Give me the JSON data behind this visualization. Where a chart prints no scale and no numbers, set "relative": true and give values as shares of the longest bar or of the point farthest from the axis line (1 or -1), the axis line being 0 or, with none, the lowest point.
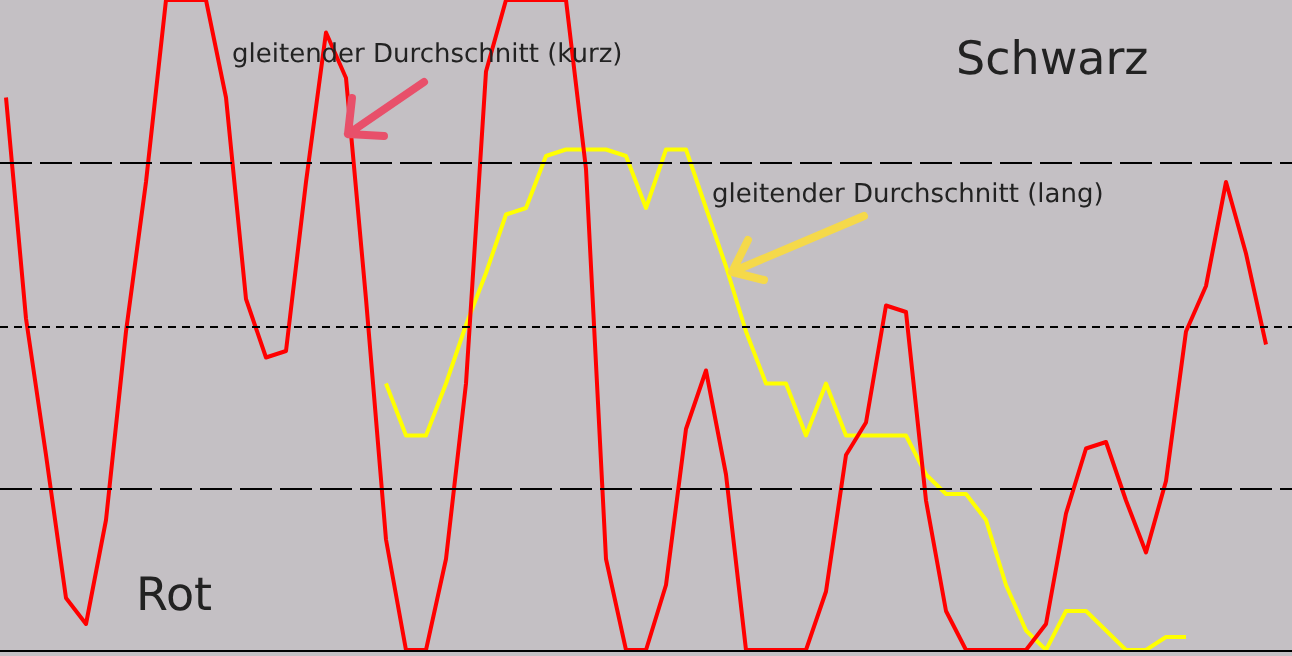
{
  "chart_data": {
    "type": "line",
    "relative": true,
    "legend": false,
    "categories": [
      null,
      null,
      null,
      null,
      null,
      null,
      null,
      null,
      null,
      null,
      null,
      null,
      null,
      null,
      null,
      null,
      null,
      null,
      null,
      null,
      null,
      null,
      null,
      null,
      null,
      null,
      null,
      null,
      null,
      null,
      null,
      null,
      null,
      null,
      null,
      null,
      null,
      null,
      null,
      null,
      null,
      null,
      null,
      null,
      null,
      null,
      null,
      null,
      null,
      null,
      null,
      null,
      null,
      null,
      null,
      null,
      null,
      null,
      null,
      null,
      null,
      null,
      null,
      null,
      null
    ],
    "series": [
      {
        "color": "#ff0000",
        "values": [
          0.85,
          0.51,
          0.3,
          0.08,
          0.04,
          0.2,
          0.49,
          0.72,
          1,
          1,
          1,
          0.85,
          0.54,
          0.45,
          0.46,
          0.72,
          0.95,
          0.88,
          0.54,
          0.17,
          0,
          0,
          0.14,
          0.41,
          0.89,
          1,
          1,
          1,
          1,
          0.74,
          0.14,
          0,
          0,
          0.1,
          0.34,
          0.43,
          0.27,
          0,
          0,
          0,
          0,
          0.09,
          0.3,
          0.35,
          0.53,
          0.52,
          0.23,
          0.06,
          0,
          0,
          0,
          0,
          0.04,
          0.21,
          0.31,
          0.32,
          0.23,
          0.15,
          0.26,
          0.49,
          0.56,
          0.72,
          0.61,
          0.47,
          null
        ]
      },
      {
        "color": "#ffff00",
        "values": [
          null,
          null,
          null,
          null,
          null,
          null,
          null,
          null,
          null,
          null,
          null,
          null,
          null,
          null,
          null,
          null,
          null,
          null,
          null,
          0.41,
          0.33,
          0.33,
          0.41,
          0.5,
          0.58,
          0.67,
          0.68,
          0.76,
          0.77,
          0.77,
          0.77,
          0.76,
          0.68,
          0.77,
          0.77,
          0.68,
          0.59,
          0.49,
          0.41,
          0.41,
          0.33,
          0.41,
          0.33,
          0.33,
          0.33,
          0.33,
          0.27,
          0.24,
          0.24,
          0.2,
          0.1,
          0.03,
          0,
          0.06,
          0.06,
          0.03,
          0,
          0,
          0.02,
          0.02,
          null,
          null,
          null,
          null,
          null
        ]
      }
    ],
    "ref_lines": [
      {
        "axis": "y",
        "value": 0.75,
        "line_style": "dashed",
        "color": "#000000"
      },
      {
        "axis": "y",
        "value": 0.5,
        "line_style": "dotted",
        "color": "#000000"
      },
      {
        "axis": "y",
        "value": 0.25,
        "line_style": "dashed",
        "color": "#000000"
      }
    ],
    "annotations": [
      "gleitender Durchschnitt (kurz)",
      "gleitender Durchschnitt (lang)",
      "Schwarz",
      "Rot"
    ]
  }
}
